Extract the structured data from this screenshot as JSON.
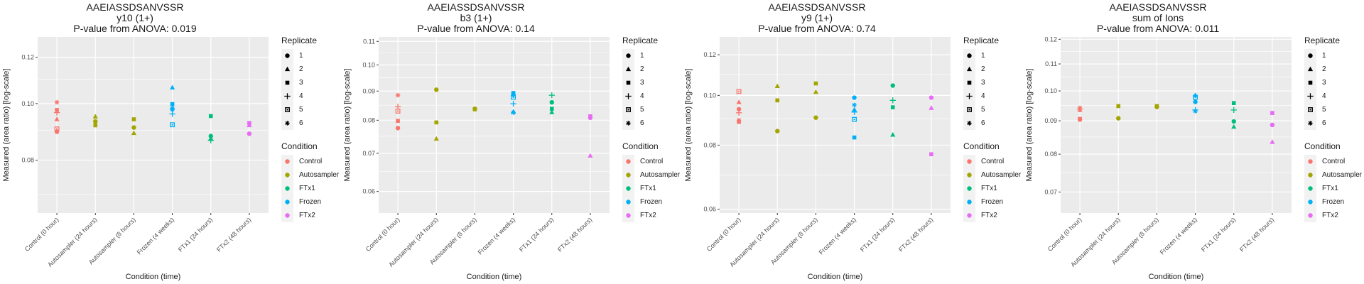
{
  "shared": {
    "xlabel": "Condition (time)",
    "ylabel": "Measured (area ratio) [log-scale]",
    "categories": [
      "Control (0 hour)",
      "Autosampler (24 hours)",
      "Autosampler (8 hours)",
      "Frozen (4 weeks)",
      "FTx1 (24 hours)",
      "FTx2 (48 hours)"
    ],
    "category_condition": [
      "Control",
      "Autosampler",
      "Autosampler",
      "Frozen",
      "FTx1",
      "FTx2"
    ],
    "legend_replicate": {
      "title": "Replicate",
      "items": [
        {
          "label": "1",
          "shape": "circle"
        },
        {
          "label": "2",
          "shape": "triangle"
        },
        {
          "label": "3",
          "shape": "square"
        },
        {
          "label": "4",
          "shape": "plus"
        },
        {
          "label": "5",
          "shape": "square-cross"
        },
        {
          "label": "6",
          "shape": "asterisk"
        }
      ]
    },
    "legend_condition": {
      "title": "Condition",
      "items": [
        {
          "label": "Control",
          "color": "#F8766D"
        },
        {
          "label": "Autosampler",
          "color": "#A3A500"
        },
        {
          "label": "FTx1",
          "color": "#00BF7D"
        },
        {
          "label": "Frozen",
          "color": "#00B0F6"
        },
        {
          "label": "FTx2",
          "color": "#E76BF3"
        }
      ]
    }
  },
  "chart_data": [
    {
      "type": "scatter",
      "title": [
        "AAEIASSDSANVSSR",
        "y10 (1+)",
        "P-value from ANOVA: 0.019"
      ],
      "xlabel": "Condition (time)",
      "ylabel": "Measured (area ratio) [log-scale]",
      "yscale": "log",
      "ylim": [
        0.065,
        0.13
      ],
      "yticks": [
        0.08,
        0.1,
        0.12
      ],
      "ytick_labels": [
        "0.08",
        "0.10",
        "0.12"
      ],
      "grid": true,
      "legend": "right",
      "points": [
        {
          "cat": 0,
          "rep": 6,
          "y": 0.1005
        },
        {
          "cat": 0,
          "rep": 3,
          "y": 0.0975
        },
        {
          "cat": 0,
          "rep": 4,
          "y": 0.0965
        },
        {
          "cat": 0,
          "rep": 2,
          "y": 0.094
        },
        {
          "cat": 0,
          "rep": 5,
          "y": 0.0905
        },
        {
          "cat": 0,
          "rep": 1,
          "y": 0.0895
        },
        {
          "cat": 1,
          "rep": 2,
          "y": 0.095
        },
        {
          "cat": 1,
          "rep": 1,
          "y": 0.0932
        },
        {
          "cat": 1,
          "rep": 3,
          "y": 0.0918
        },
        {
          "cat": 2,
          "rep": 3,
          "y": 0.094
        },
        {
          "cat": 2,
          "rep": 1,
          "y": 0.091
        },
        {
          "cat": 2,
          "rep": 2,
          "y": 0.089
        },
        {
          "cat": 3,
          "rep": 2,
          "y": 0.1065
        },
        {
          "cat": 3,
          "rep": 3,
          "y": 0.0998
        },
        {
          "cat": 3,
          "rep": 6,
          "y": 0.0982
        },
        {
          "cat": 3,
          "rep": 1,
          "y": 0.0978
        },
        {
          "cat": 3,
          "rep": 4,
          "y": 0.096
        },
        {
          "cat": 3,
          "rep": 5,
          "y": 0.092
        },
        {
          "cat": 4,
          "rep": 3,
          "y": 0.0952
        },
        {
          "cat": 4,
          "rep": 1,
          "y": 0.088
        },
        {
          "cat": 4,
          "rep": 2,
          "y": 0.0872
        },
        {
          "cat": 4,
          "rep": 4,
          "y": 0.0865
        },
        {
          "cat": 5,
          "rep": 3,
          "y": 0.0926
        },
        {
          "cat": 5,
          "rep": 2,
          "y": 0.0918
        },
        {
          "cat": 5,
          "rep": 1,
          "y": 0.0888
        }
      ]
    },
    {
      "type": "scatter",
      "title": [
        "AAEIASSDSANVSSR",
        "b3 (1+)",
        "P-value from ANOVA: 0.14"
      ],
      "xlabel": "Condition (time)",
      "ylabel": "Measured (area ratio) [log-scale]",
      "yscale": "log",
      "ylim": [
        0.055,
        0.112
      ],
      "yticks": [
        0.06,
        0.07,
        0.08,
        0.09,
        0.1,
        0.11
      ],
      "ytick_labels": [
        "0.06",
        "0.07",
        "0.08",
        "0.09",
        "0.10",
        "0.11"
      ],
      "grid": true,
      "legend": "right",
      "points": [
        {
          "cat": 0,
          "rep": 6,
          "y": 0.0885
        },
        {
          "cat": 0,
          "rep": 4,
          "y": 0.0845
        },
        {
          "cat": 0,
          "rep": 5,
          "y": 0.083
        },
        {
          "cat": 0,
          "rep": 3,
          "y": 0.0798
        },
        {
          "cat": 0,
          "rep": 1,
          "y": 0.0775
        },
        {
          "cat": 1,
          "rep": 1,
          "y": 0.0905
        },
        {
          "cat": 1,
          "rep": 3,
          "y": 0.0793
        },
        {
          "cat": 1,
          "rep": 2,
          "y": 0.0742
        },
        {
          "cat": 2,
          "rep": 1,
          "y": 0.0838
        },
        {
          "cat": 2,
          "rep": 3,
          "y": 0.0836
        },
        {
          "cat": 3,
          "rep": 3,
          "y": 0.0893
        },
        {
          "cat": 3,
          "rep": 1,
          "y": 0.0888
        },
        {
          "cat": 3,
          "rep": 5,
          "y": 0.0878
        },
        {
          "cat": 3,
          "rep": 4,
          "y": 0.0855
        },
        {
          "cat": 3,
          "rep": 2,
          "y": 0.0828
        },
        {
          "cat": 3,
          "rep": 6,
          "y": 0.0825
        },
        {
          "cat": 4,
          "rep": 4,
          "y": 0.0885
        },
        {
          "cat": 4,
          "rep": 1,
          "y": 0.086
        },
        {
          "cat": 4,
          "rep": 3,
          "y": 0.0838
        },
        {
          "cat": 4,
          "rep": 2,
          "y": 0.0826
        },
        {
          "cat": 5,
          "rep": 3,
          "y": 0.0813
        },
        {
          "cat": 5,
          "rep": 1,
          "y": 0.0808
        },
        {
          "cat": 5,
          "rep": 2,
          "y": 0.0693
        }
      ]
    },
    {
      "type": "scatter",
      "title": [
        "AAEIASSDSANVSSR",
        "y9 (1+)",
        "P-value from ANOVA: 0.74"
      ],
      "xlabel": "Condition (time)",
      "ylabel": "Measured (area ratio) [log-scale]",
      "yscale": "log",
      "ylim": [
        0.059,
        0.13
      ],
      "yticks": [
        0.06,
        0.08,
        0.1,
        0.12
      ],
      "ytick_labels": [
        "0.06",
        "0.08",
        "0.10",
        "0.12"
      ],
      "grid": true,
      "legend": "right",
      "points": [
        {
          "cat": 0,
          "rep": 5,
          "y": 0.1018
        },
        {
          "cat": 0,
          "rep": 2,
          "y": 0.097
        },
        {
          "cat": 0,
          "rep": 1,
          "y": 0.094
        },
        {
          "cat": 0,
          "rep": 4,
          "y": 0.0925
        },
        {
          "cat": 0,
          "rep": 6,
          "y": 0.0895
        },
        {
          "cat": 0,
          "rep": 3,
          "y": 0.0888
        },
        {
          "cat": 1,
          "rep": 2,
          "y": 0.1042
        },
        {
          "cat": 1,
          "rep": 3,
          "y": 0.0978
        },
        {
          "cat": 1,
          "rep": 1,
          "y": 0.0852
        },
        {
          "cat": 2,
          "rep": 3,
          "y": 0.1055
        },
        {
          "cat": 2,
          "rep": 2,
          "y": 0.1015
        },
        {
          "cat": 2,
          "rep": 1,
          "y": 0.0905
        },
        {
          "cat": 3,
          "rep": 1,
          "y": 0.099
        },
        {
          "cat": 3,
          "rep": 6,
          "y": 0.0958
        },
        {
          "cat": 3,
          "rep": 2,
          "y": 0.0938
        },
        {
          "cat": 3,
          "rep": 4,
          "y": 0.0928
        },
        {
          "cat": 3,
          "rep": 5,
          "y": 0.0898
        },
        {
          "cat": 3,
          "rep": 3,
          "y": 0.0828
        },
        {
          "cat": 4,
          "rep": 1,
          "y": 0.1045
        },
        {
          "cat": 4,
          "rep": 4,
          "y": 0.0978
        },
        {
          "cat": 4,
          "rep": 3,
          "y": 0.0948
        },
        {
          "cat": 4,
          "rep": 2,
          "y": 0.0838
        },
        {
          "cat": 5,
          "rep": 1,
          "y": 0.099
        },
        {
          "cat": 5,
          "rep": 2,
          "y": 0.0945
        },
        {
          "cat": 5,
          "rep": 3,
          "y": 0.0768
        }
      ]
    },
    {
      "type": "scatter",
      "title": [
        "AAEIASSDSANVSSR",
        "sum of Ions",
        "P-value from ANOVA: 0.011"
      ],
      "xlabel": "Condition (time)",
      "ylabel": "Measured (area ratio) [log-scale]",
      "yscale": "log",
      "ylim": [
        0.065,
        0.121
      ],
      "yticks": [
        0.07,
        0.08,
        0.09,
        0.1,
        0.11,
        0.12
      ],
      "ytick_labels": [
        "0.07",
        "0.08",
        "0.09",
        "0.10",
        "0.11",
        "0.12"
      ],
      "grid": true,
      "legend": "right",
      "points": [
        {
          "cat": 0,
          "rep": 6,
          "y": 0.0942
        },
        {
          "cat": 0,
          "rep": 4,
          "y": 0.0938
        },
        {
          "cat": 0,
          "rep": 2,
          "y": 0.0935
        },
        {
          "cat": 0,
          "rep": 3,
          "y": 0.0906
        },
        {
          "cat": 0,
          "rep": 1,
          "y": 0.0904
        },
        {
          "cat": 1,
          "rep": 3,
          "y": 0.0948
        },
        {
          "cat": 1,
          "rep": 1,
          "y": 0.0908
        },
        {
          "cat": 2,
          "rep": 3,
          "y": 0.0948
        },
        {
          "cat": 2,
          "rep": 1,
          "y": 0.0945
        },
        {
          "cat": 3,
          "rep": 2,
          "y": 0.0985
        },
        {
          "cat": 3,
          "rep": 5,
          "y": 0.0978
        },
        {
          "cat": 3,
          "rep": 1,
          "y": 0.0962
        },
        {
          "cat": 3,
          "rep": 4,
          "y": 0.0935
        },
        {
          "cat": 3,
          "rep": 6,
          "y": 0.0931
        },
        {
          "cat": 4,
          "rep": 3,
          "y": 0.0958
        },
        {
          "cat": 4,
          "rep": 4,
          "y": 0.0935
        },
        {
          "cat": 4,
          "rep": 1,
          "y": 0.0898
        },
        {
          "cat": 4,
          "rep": 2,
          "y": 0.0881
        },
        {
          "cat": 5,
          "rep": 3,
          "y": 0.0925
        },
        {
          "cat": 5,
          "rep": 1,
          "y": 0.0887
        },
        {
          "cat": 5,
          "rep": 2,
          "y": 0.0835
        }
      ]
    }
  ]
}
